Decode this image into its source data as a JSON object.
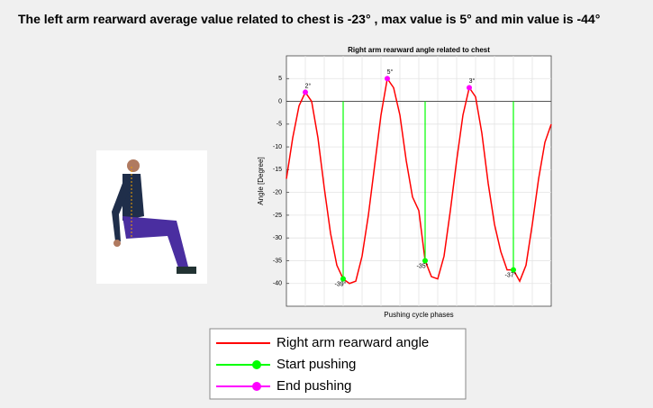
{
  "header": {
    "title": "The left arm rearward average value related to chest is -23° , max value is 5° and min value is -44°"
  },
  "chart_data": {
    "type": "line",
    "title": "Right arm rearward angle related to chest",
    "xlabel": "Pushing cycle phases",
    "ylabel": "Angle [Degree]",
    "ylim": [
      -45,
      10
    ],
    "yticks": [
      5,
      0,
      -5,
      -10,
      -15,
      -20,
      -25,
      -30,
      -35,
      -40
    ],
    "grid": true,
    "series": [
      {
        "name": "Right arm rearward angle",
        "color": "#ff0000",
        "values": [
          -17,
          -8,
          -1,
          2,
          0,
          -8,
          -19,
          -29,
          -36,
          -39,
          -40,
          -39.5,
          -34,
          -25,
          -14,
          -3,
          5,
          3,
          -3,
          -13,
          -21,
          -24,
          -35,
          -38.5,
          -39,
          -34,
          -24,
          -13,
          -3,
          3,
          1,
          -7,
          -18,
          -27,
          -33,
          -37,
          -37,
          -39.5,
          -36,
          -27,
          -17,
          -9,
          -5
        ]
      },
      {
        "name": "Start pushing",
        "color": "#00ff00",
        "marker": "stem",
        "values": [
          null,
          null,
          null,
          null,
          null,
          null,
          null,
          null,
          null,
          -39,
          null,
          null,
          null,
          null,
          null,
          null,
          null,
          null,
          null,
          null,
          null,
          null,
          -35,
          null,
          null,
          null,
          null,
          null,
          null,
          null,
          null,
          null,
          null,
          null,
          null,
          null,
          -37,
          null,
          null,
          null,
          null,
          null,
          null
        ],
        "value_labels": [
          null,
          null,
          null,
          null,
          null,
          null,
          null,
          null,
          null,
          "-39°",
          null,
          null,
          null,
          null,
          null,
          null,
          null,
          null,
          null,
          null,
          null,
          null,
          "-35°",
          null,
          null,
          null,
          null,
          null,
          null,
          null,
          null,
          null,
          null,
          null,
          null,
          null,
          "-37°",
          null,
          null,
          null,
          null,
          null,
          null
        ]
      },
      {
        "name": "End pushing",
        "color": "#ff00ff",
        "marker": "dot",
        "values": [
          null,
          null,
          null,
          2,
          null,
          null,
          null,
          null,
          null,
          null,
          null,
          null,
          null,
          null,
          null,
          null,
          5,
          null,
          null,
          null,
          null,
          null,
          null,
          null,
          null,
          null,
          null,
          null,
          null,
          3,
          null,
          null,
          null,
          null,
          null,
          null,
          null,
          null,
          null,
          null,
          null,
          null,
          null
        ],
        "value_labels": [
          null,
          null,
          null,
          "2°",
          null,
          null,
          null,
          null,
          null,
          null,
          null,
          null,
          null,
          null,
          null,
          null,
          "5°",
          null,
          null,
          null,
          null,
          null,
          null,
          null,
          null,
          null,
          null,
          null,
          null,
          "3°",
          null,
          null,
          null,
          null,
          null,
          null,
          null,
          null,
          null,
          null,
          null,
          null,
          null
        ]
      }
    ]
  }
}
